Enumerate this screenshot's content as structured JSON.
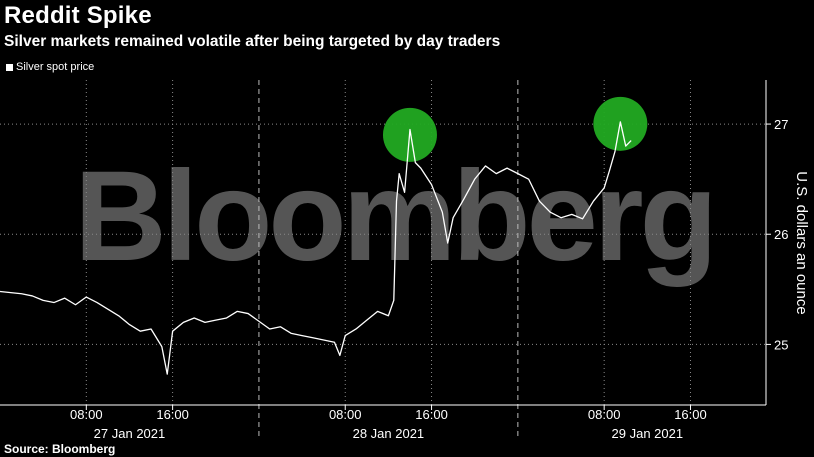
{
  "header": {
    "title": "Reddit Spike",
    "subtitle": "Silver markets remained volatile after being targeted by day traders"
  },
  "watermark": "Bloomberg",
  "source": "Source: Bloomberg",
  "colors": {
    "background": "#000000",
    "line": "#ffffff",
    "highlight": "#22aa22",
    "watermark": "#555555"
  },
  "chart_data": {
    "type": "line",
    "title": "Reddit Spike",
    "subtitle": "Silver markets remained volatile after being targeted by day traders",
    "ylabel": "U.S. dollars an ounce",
    "xlabel": "",
    "y_axis_position": "right",
    "ylim": [
      24.45,
      27.4
    ],
    "yticks": [
      25,
      26,
      27
    ],
    "xlim": [
      "2021-01-27T00:00",
      "2021-01-29T23:00"
    ],
    "xticks": [
      {
        "time": "2021-01-27T08:00",
        "label": "08:00"
      },
      {
        "time": "2021-01-27T16:00",
        "label": "16:00"
      },
      {
        "time": "2021-01-28T08:00",
        "label": "08:00"
      },
      {
        "time": "2021-01-28T16:00",
        "label": "16:00"
      },
      {
        "time": "2021-01-29T08:00",
        "label": "08:00"
      },
      {
        "time": "2021-01-29T16:00",
        "label": "16:00"
      }
    ],
    "day_labels": [
      {
        "time": "2021-01-27T12:00",
        "label": "27 Jan 2021"
      },
      {
        "time": "2021-01-28T12:00",
        "label": "28 Jan 2021"
      },
      {
        "time": "2021-01-29T12:00",
        "label": "29 Jan 2021"
      }
    ],
    "day_separators": [
      "2021-01-28T00:00",
      "2021-01-29T00:00"
    ],
    "grid": true,
    "legend_position": "top-left",
    "series": [
      {
        "name": "Silver spot price",
        "points": [
          [
            "2021-01-27T00:00",
            25.48
          ],
          [
            "2021-01-27T01:00",
            25.47
          ],
          [
            "2021-01-27T02:00",
            25.46
          ],
          [
            "2021-01-27T03:00",
            25.44
          ],
          [
            "2021-01-27T04:00",
            25.4
          ],
          [
            "2021-01-27T05:00",
            25.38
          ],
          [
            "2021-01-27T06:00",
            25.42
          ],
          [
            "2021-01-27T07:00",
            25.36
          ],
          [
            "2021-01-27T08:00",
            25.43
          ],
          [
            "2021-01-27T09:00",
            25.38
          ],
          [
            "2021-01-27T10:00",
            25.32
          ],
          [
            "2021-01-27T11:00",
            25.26
          ],
          [
            "2021-01-27T12:00",
            25.18
          ],
          [
            "2021-01-27T13:00",
            25.12
          ],
          [
            "2021-01-27T14:00",
            25.14
          ],
          [
            "2021-01-27T15:00",
            24.98
          ],
          [
            "2021-01-27T15:30",
            24.73
          ],
          [
            "2021-01-27T16:00",
            25.12
          ],
          [
            "2021-01-27T17:00",
            25.2
          ],
          [
            "2021-01-27T18:00",
            25.24
          ],
          [
            "2021-01-27T19:00",
            25.2
          ],
          [
            "2021-01-27T20:00",
            25.22
          ],
          [
            "2021-01-27T21:00",
            25.24
          ],
          [
            "2021-01-27T22:00",
            25.3
          ],
          [
            "2021-01-27T23:00",
            25.28
          ],
          [
            "2021-01-28T01:00",
            25.14
          ],
          [
            "2021-01-28T02:00",
            25.16
          ],
          [
            "2021-01-28T03:00",
            25.1
          ],
          [
            "2021-01-28T04:00",
            25.08
          ],
          [
            "2021-01-28T05:00",
            25.06
          ],
          [
            "2021-01-28T06:00",
            25.04
          ],
          [
            "2021-01-28T07:00",
            25.02
          ],
          [
            "2021-01-28T07:30",
            24.9
          ],
          [
            "2021-01-28T08:00",
            25.08
          ],
          [
            "2021-01-28T09:00",
            25.14
          ],
          [
            "2021-01-28T10:00",
            25.22
          ],
          [
            "2021-01-28T11:00",
            25.3
          ],
          [
            "2021-01-28T12:00",
            25.26
          ],
          [
            "2021-01-28T12:30",
            25.4
          ],
          [
            "2021-01-28T12:45",
            26.3
          ],
          [
            "2021-01-28T13:00",
            26.55
          ],
          [
            "2021-01-28T13:30",
            26.38
          ],
          [
            "2021-01-28T14:00",
            26.95
          ],
          [
            "2021-01-28T14:30",
            26.65
          ],
          [
            "2021-01-28T15:00",
            26.6
          ],
          [
            "2021-01-28T16:00",
            26.45
          ],
          [
            "2021-01-28T17:00",
            26.2
          ],
          [
            "2021-01-28T17:30",
            25.92
          ],
          [
            "2021-01-28T18:00",
            26.15
          ],
          [
            "2021-01-28T19:00",
            26.32
          ],
          [
            "2021-01-28T20:00",
            26.5
          ],
          [
            "2021-01-28T21:00",
            26.62
          ],
          [
            "2021-01-28T22:00",
            26.55
          ],
          [
            "2021-01-28T23:00",
            26.6
          ],
          [
            "2021-01-29T00:00",
            26.55
          ],
          [
            "2021-01-29T01:00",
            26.5
          ],
          [
            "2021-01-29T02:00",
            26.3
          ],
          [
            "2021-01-29T03:00",
            26.2
          ],
          [
            "2021-01-29T04:00",
            26.15
          ],
          [
            "2021-01-29T05:00",
            26.18
          ],
          [
            "2021-01-29T06:00",
            26.14
          ],
          [
            "2021-01-29T07:00",
            26.3
          ],
          [
            "2021-01-29T08:00",
            26.42
          ],
          [
            "2021-01-29T08:30",
            26.58
          ],
          [
            "2021-01-29T09:00",
            26.75
          ],
          [
            "2021-01-29T09:30",
            27.02
          ],
          [
            "2021-01-29T10:00",
            26.8
          ],
          [
            "2021-01-29T10:30",
            26.85
          ]
        ]
      }
    ],
    "annotations": [
      {
        "type": "circle",
        "time": "2021-01-28T14:00",
        "value": 26.92,
        "color": "#22aa22"
      },
      {
        "type": "circle",
        "time": "2021-01-29T09:30",
        "value": 27.02,
        "color": "#22aa22"
      }
    ]
  }
}
